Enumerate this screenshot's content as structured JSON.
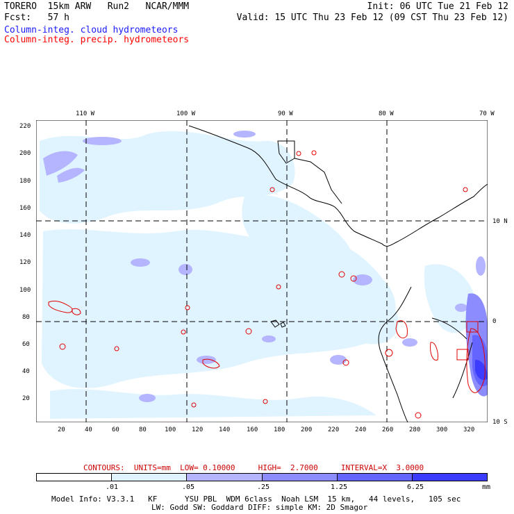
{
  "header": {
    "line1_left": "TORERO  15km ARW   Run2   NCAR/MMM",
    "line2_left": "Fcst:   57 h",
    "line1_right": "Init: 06 UTC Tue 21 Feb 12",
    "line2_right": "Valid: 15 UTC Thu 23 Feb 12 (09 CST Thu 23 Feb 12)"
  },
  "legend": {
    "cloud": "Column-integ. cloud hydrometeors",
    "precip": "Column-integ. precip. hydrometeors",
    "cloud_color": "#1a1aff",
    "precip_color": "#ff0000"
  },
  "top_axis": [
    "110 W",
    "100 W",
    "90 W",
    "80 W",
    "70 W"
  ],
  "right_axis": [
    "10 N",
    "0",
    "10 S"
  ],
  "left_axis": [
    "220",
    "200",
    "180",
    "160",
    "140",
    "120",
    "100",
    "80",
    "60",
    "40",
    "20"
  ],
  "bottom_axis": [
    "20",
    "40",
    "60",
    "80",
    "100",
    "120",
    "140",
    "160",
    "180",
    "200",
    "220",
    "240",
    "260",
    "280",
    "300",
    "320"
  ],
  "contour_info": "CONTOURS:  UNITS=mm  LOW= 0.10000     HIGH=  2.7000     INTERVAL=X  3.0000",
  "colorbar": {
    "labels": [
      ".01",
      ".05",
      ".25",
      "1.25",
      "6.25"
    ],
    "unit": "mm",
    "colors": [
      "#ffffff",
      "#e0f4ff",
      "#b4b4ff",
      "#8c8cff",
      "#6464ff",
      "#3c3cff"
    ]
  },
  "footer": {
    "line1": "Model Info: V3.3.1   KF      YSU PBL  WDM 6class  Noah LSM  15 km,   44 levels,   105 sec",
    "line2": "LW: Godd SW: Goddard DIFF: simple KM: 2D Smagor"
  }
}
